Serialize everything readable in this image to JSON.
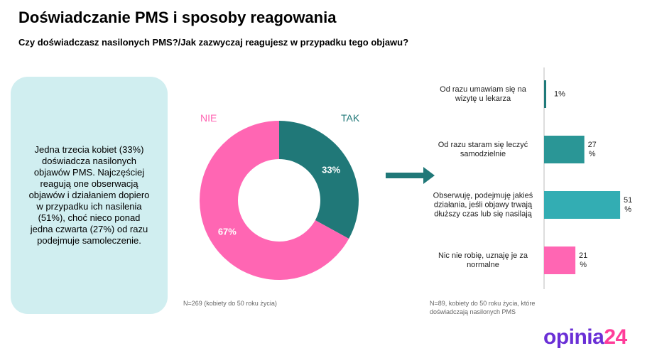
{
  "title": "Doświadczanie PMS i sposoby reagowania",
  "subtitle": "Czy doświadczasz nasilonych PMS?/Jak zazwyczaj reagujesz w przypadku tego objawu?",
  "summary": "Jedna trzecia kobiet (33%) doświadcza nasilonych objawów PMS. Najczęściej reagują one obserwacją objawów i działaniem dopiero w przypadku ich nasilenia (51%), choć nieco ponad jedna czwarta (27%) od razu podejmuje samoleczenie.",
  "logo": {
    "part1": "opinia",
    "part2": "24",
    "color1": "#6a2fd6",
    "color2": "#ff3d9a"
  },
  "chart_data": [
    {
      "type": "pie",
      "donut": true,
      "categories": [
        "TAK",
        "NIE"
      ],
      "values": [
        33,
        67
      ],
      "data_labels": [
        "33%",
        "67%"
      ],
      "colors": [
        "#207878",
        "#ff66b3"
      ],
      "note": "N=269 (kobiety do 50 roku życia)"
    },
    {
      "type": "bar",
      "orientation": "horizontal",
      "categories": [
        "Od razu umawiam się na wizytę u lekarza",
        "Od razu staram się leczyć samodzielnie",
        "Obserwuję, podejmuję jakieś działania, jeśli objawy trwają dłuższy czas lub się nasilają",
        "Nic nie robię, uznaję je za normalne"
      ],
      "values": [
        1,
        27,
        51,
        21
      ],
      "data_labels": [
        "1%",
        "27 %",
        "51 %",
        "21 %"
      ],
      "colors": [
        "#1f7a7a",
        "#2a9696",
        "#33adb3",
        "#ff66b3"
      ],
      "note": "N=89, kobiety do 50 roku życia, które doświadczają nasilonych PMS"
    }
  ]
}
